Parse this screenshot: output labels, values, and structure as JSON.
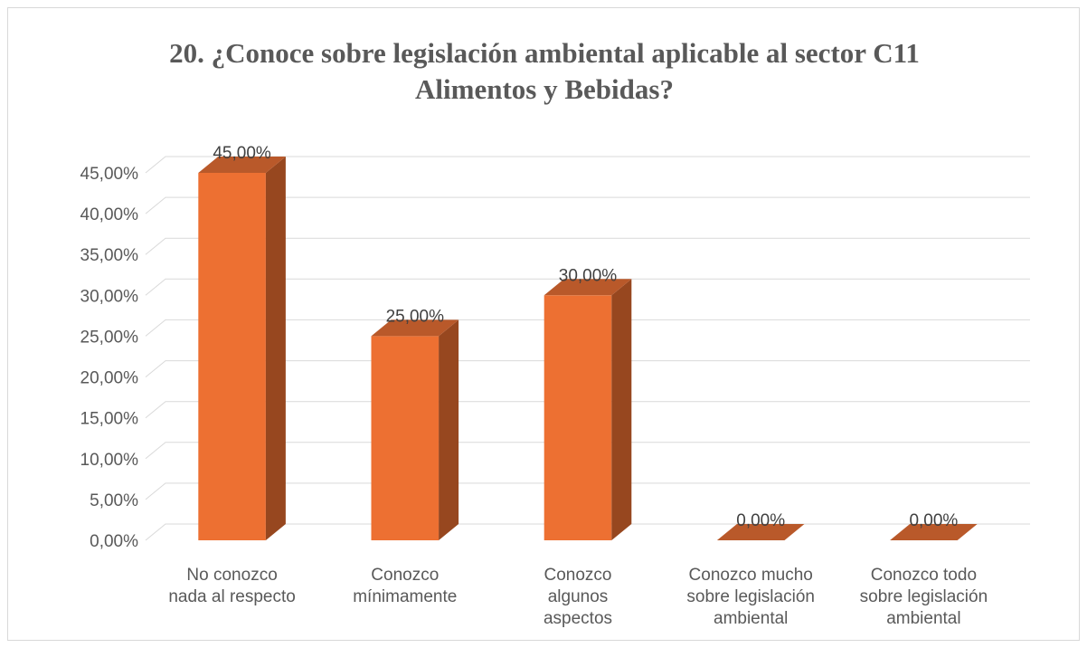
{
  "chart_data": {
    "type": "bar",
    "title_lines": [
      "20. ¿Conoce sobre legislación ambiental aplicable al sector C11",
      "Alimentos y Bebidas?"
    ],
    "categories": [
      [
        "No conozco",
        "nada al respecto"
      ],
      [
        "Conozco",
        "mínimamente"
      ],
      [
        "Conozco",
        "algunos",
        "aspectos"
      ],
      [
        "Conozco mucho",
        "sobre legislación",
        "ambiental"
      ],
      [
        "Conozco todo",
        "sobre legislación",
        "ambiental"
      ]
    ],
    "values": [
      45,
      25,
      30,
      0,
      0
    ],
    "data_labels": [
      "45,00%",
      "25,00%",
      "30,00%",
      "0,00%",
      "0,00%"
    ],
    "y_ticks": [
      "0,00%",
      "5,00%",
      "10,00%",
      "15,00%",
      "20,00%",
      "25,00%",
      "30,00%",
      "35,00%",
      "40,00%",
      "45,00%"
    ],
    "ylim": [
      0,
      45
    ],
    "style": "3d-column",
    "grid": true,
    "legend": "none",
    "colors": {
      "front": "#ed7032",
      "side": "#97471f",
      "top": "#b9592a",
      "grid": "#d9d9d9"
    }
  }
}
